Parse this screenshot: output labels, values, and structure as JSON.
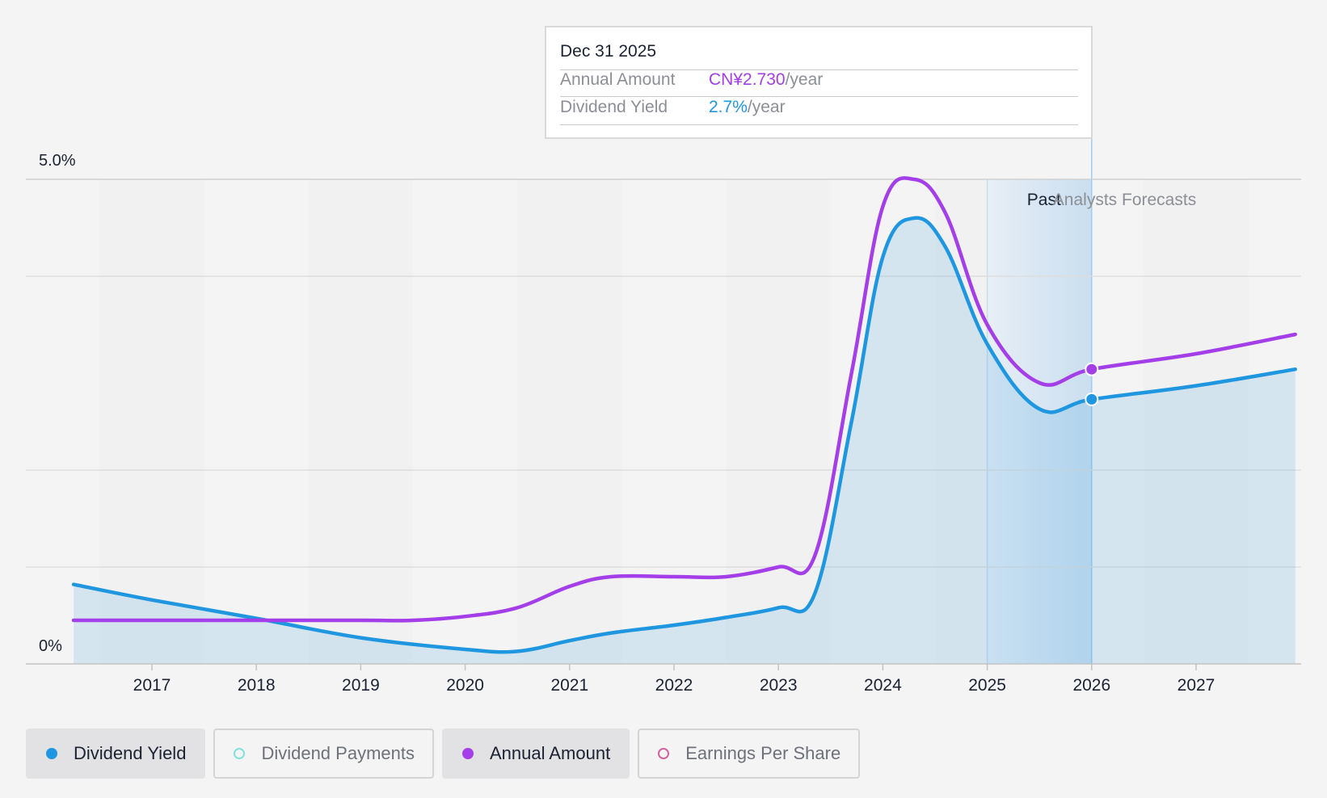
{
  "tooltip": {
    "date": "Dec 31 2025",
    "rows": [
      {
        "label": "Annual Amount",
        "value": "CN¥2.730",
        "unit": "/year",
        "color": "#a43ee8"
      },
      {
        "label": "Dividend Yield",
        "value": "2.7%",
        "unit": "/year",
        "color": "#1f96e0"
      }
    ]
  },
  "legend": [
    {
      "label": "Dividend Yield",
      "color": "#1f96e0",
      "active": true,
      "icon": "filled-circle-icon"
    },
    {
      "label": "Dividend Payments",
      "color": "#7fe3dc",
      "active": false,
      "icon": "hollow-circle-icon"
    },
    {
      "label": "Annual Amount",
      "color": "#a43ee8",
      "active": true,
      "icon": "filled-circle-icon"
    },
    {
      "label": "Earnings Per Share",
      "color": "#d6619e",
      "active": false,
      "icon": "hollow-circle-icon"
    }
  ],
  "chart_data": {
    "type": "line",
    "x_ticks": [
      "2017",
      "2018",
      "2019",
      "2020",
      "2021",
      "2022",
      "2023",
      "2024",
      "2025",
      "2026",
      "2027"
    ],
    "y_tick_labels": [
      "5.0%",
      "0%"
    ],
    "ylim": [
      0,
      5.0
    ],
    "xlim": [
      2016.25,
      2027.95
    ],
    "grid": true,
    "sections": {
      "past": "Past",
      "forecast": "Analysts Forecasts"
    },
    "forecast_start": 2026.0,
    "past_highlight_start": 2025.0,
    "series": [
      {
        "name": "Dividend Yield",
        "color": "#1f96e0",
        "filled": true,
        "points": [
          [
            2016.25,
            0.82
          ],
          [
            2017,
            0.66
          ],
          [
            2018,
            0.47
          ],
          [
            2019,
            0.27
          ],
          [
            2020,
            0.15
          ],
          [
            2020.5,
            0.13
          ],
          [
            2021,
            0.24
          ],
          [
            2021.4,
            0.32
          ],
          [
            2022,
            0.4
          ],
          [
            2022.5,
            0.48
          ],
          [
            2023,
            0.58
          ],
          [
            2023.35,
            0.73
          ],
          [
            2023.7,
            2.5
          ],
          [
            2024,
            4.2
          ],
          [
            2024.3,
            4.6
          ],
          [
            2024.6,
            4.3
          ],
          [
            2025,
            3.3
          ],
          [
            2025.5,
            2.63
          ],
          [
            2026,
            2.73
          ],
          [
            2027,
            2.87
          ],
          [
            2027.95,
            3.04
          ]
        ]
      },
      {
        "name": "Annual Amount",
        "color": "#a43ee8",
        "filled": false,
        "points": [
          [
            2016.25,
            0.45
          ],
          [
            2017,
            0.45
          ],
          [
            2018,
            0.45
          ],
          [
            2019,
            0.45
          ],
          [
            2019.5,
            0.45
          ],
          [
            2020,
            0.49
          ],
          [
            2020.5,
            0.58
          ],
          [
            2021,
            0.8
          ],
          [
            2021.4,
            0.9
          ],
          [
            2022,
            0.9
          ],
          [
            2022.5,
            0.9
          ],
          [
            2023,
            1.0
          ],
          [
            2023.35,
            1.12
          ],
          [
            2023.7,
            3.0
          ],
          [
            2024,
            4.72
          ],
          [
            2024.3,
            5.0
          ],
          [
            2024.6,
            4.65
          ],
          [
            2025,
            3.5
          ],
          [
            2025.5,
            2.9
          ],
          [
            2026,
            3.04
          ],
          [
            2027,
            3.2
          ],
          [
            2027.95,
            3.4
          ]
        ]
      }
    ],
    "highlighted_x": 2026.0,
    "highlighted_values": {
      "Dividend Yield": 2.73,
      "Annual Amount": 3.04
    }
  }
}
